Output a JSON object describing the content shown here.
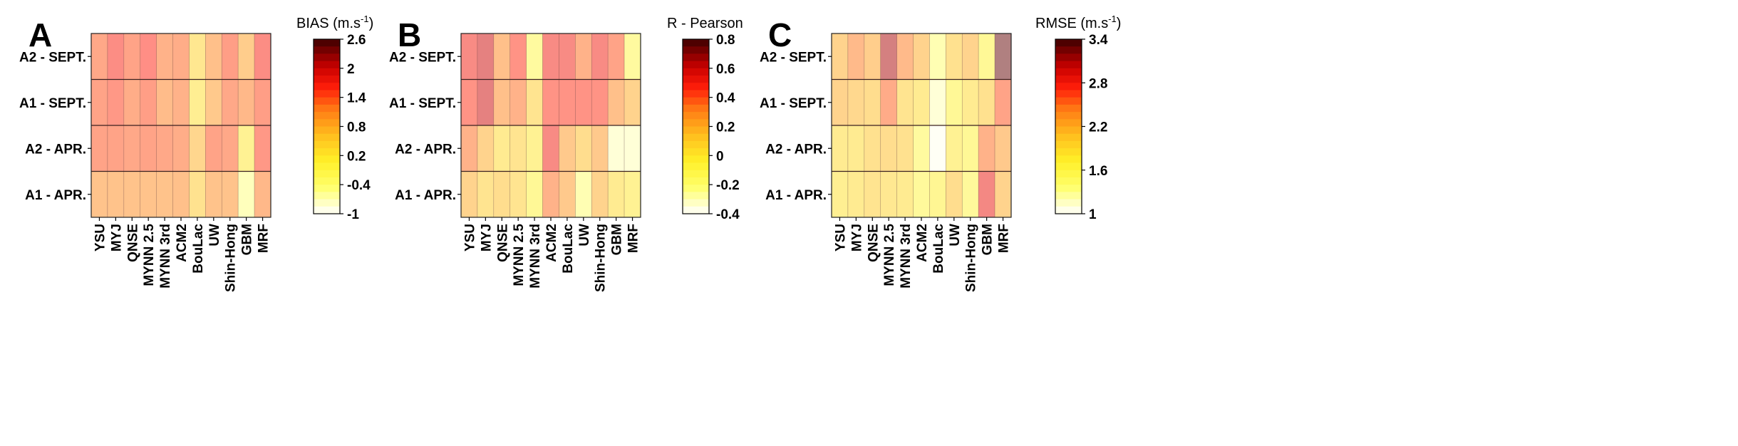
{
  "chart_data": [
    {
      "type": "heatmap",
      "panel_label": "A",
      "colorbar_title": "BIAS (m.s",
      "colorbar_title_sup": "-1",
      "colorbar_title_end": ")",
      "rows": [
        "A2 - SEPT.",
        "A1 - SEPT.",
        "A2 - APR.",
        "A1 - APR."
      ],
      "columns": [
        "YSU",
        "MYJ",
        "QNSE",
        "MYNN 2.5",
        "MYNN 3rd",
        "ACM2",
        "BouLac",
        "UW",
        "Shin-Hong",
        "GBM",
        "MRF"
      ],
      "colorbar_ticks": [
        "2.6",
        "2",
        "1.4",
        "0.8",
        "0.2",
        "-0.4",
        "-1"
      ],
      "vmin": -1,
      "vmax": 2.6,
      "values": [
        [
          1.35,
          1.65,
          1.4,
          1.6,
          1.25,
          1.3,
          0.45,
          1.1,
          1.45,
          0.9,
          1.65
        ],
        [
          1.4,
          1.5,
          1.3,
          1.45,
          1.15,
          1.25,
          0.3,
          0.95,
          1.35,
          1.2,
          1.45
        ],
        [
          1.4,
          1.4,
          1.35,
          1.4,
          1.35,
          1.3,
          0.75,
          1.4,
          1.35,
          0.2,
          1.5
        ],
        [
          1.05,
          1.05,
          1.05,
          1.05,
          1.05,
          1.1,
          0.55,
          1.05,
          1.05,
          -0.5,
          1.2
        ]
      ]
    },
    {
      "type": "heatmap",
      "panel_label": "B",
      "colorbar_title": "R - Pearson",
      "colorbar_title_sup": "",
      "colorbar_title_end": "",
      "rows": [
        "A2 - SEPT.",
        "A1 - SEPT.",
        "A2 - APR.",
        "A1 - APR."
      ],
      "columns": [
        "YSU",
        "MYJ",
        "QNSE",
        "MYNN 2.5",
        "MYNN 3rd",
        "ACM2",
        "BouLac",
        "UW",
        "Shin-Hong",
        "GBM",
        "MRF"
      ],
      "colorbar_ticks": [
        "0.8",
        "0.6",
        "0.4",
        "0.2",
        "0",
        "-0.2",
        "-0.4"
      ],
      "vmin": -0.4,
      "vmax": 0.8,
      "values": [
        [
          0.5,
          0.6,
          0.3,
          0.45,
          -0.1,
          0.5,
          0.5,
          0.35,
          0.5,
          0.4,
          -0.1
        ],
        [
          0.45,
          0.6,
          0.3,
          0.35,
          0.1,
          0.45,
          0.45,
          0.45,
          0.45,
          0.3,
          0.2
        ],
        [
          0.35,
          0.2,
          0.05,
          0.1,
          0.0,
          0.5,
          0.25,
          0.15,
          0.25,
          -0.3,
          -0.3
        ],
        [
          0.2,
          0.1,
          0.15,
          0.1,
          -0.05,
          0.35,
          0.25,
          -0.2,
          0.2,
          0.05,
          0.0
        ]
      ]
    },
    {
      "type": "heatmap",
      "panel_label": "C",
      "colorbar_title": "RMSE (m.s",
      "colorbar_title_sup": "-1",
      "colorbar_title_end": ")",
      "rows": [
        "A2 - SEPT.",
        "A1 - SEPT.",
        "A2 - APR.",
        "A1 - APR."
      ],
      "columns": [
        "YSU",
        "MYJ",
        "QNSE",
        "MYNN 2.5",
        "MYNN 3rd",
        "ACM2",
        "BouLac",
        "UW",
        "Shin-Hong",
        "GBM",
        "MRF"
      ],
      "colorbar_ticks": [
        "3.4",
        "2.8",
        "2.2",
        "1.6",
        "1"
      ],
      "vmin": 1,
      "vmax": 3.4,
      "values": [
        [
          2.2,
          2.45,
          2.25,
          3.1,
          2.45,
          2.2,
          1.4,
          2.05,
          2.2,
          1.7,
          3.3
        ],
        [
          2.2,
          2.15,
          2.1,
          2.55,
          2.0,
          1.9,
          1.2,
          1.7,
          1.9,
          2.05,
          2.6
        ],
        [
          1.9,
          1.9,
          2.05,
          2.1,
          2.05,
          1.6,
          1.05,
          1.8,
          1.7,
          2.5,
          2.3
        ],
        [
          1.85,
          1.9,
          2.0,
          1.95,
          1.9,
          1.65,
          1.75,
          2.1,
          1.65,
          2.85,
          2.2
        ]
      ]
    }
  ]
}
